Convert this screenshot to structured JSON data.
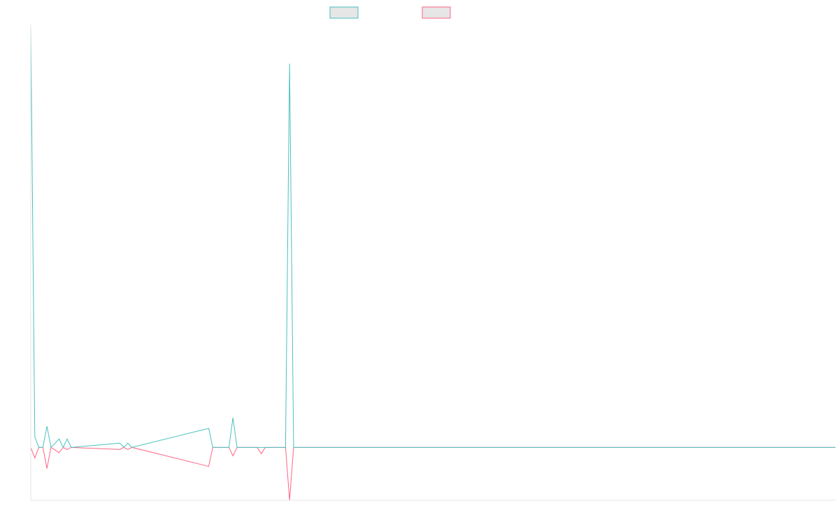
{
  "chart_data": {
    "type": "line",
    "title": "",
    "xlabel": "",
    "ylabel": "",
    "legend": {
      "placement": "top-center"
    },
    "grid": false,
    "x_count": 200,
    "ylim": [
      -50,
      400
    ],
    "series": [
      {
        "color": "#4bc0c0",
        "points": [
          [
            0,
            400
          ],
          [
            1,
            10
          ],
          [
            2,
            0
          ],
          [
            3,
            0
          ],
          [
            4,
            20
          ],
          [
            5,
            0
          ],
          [
            7,
            8
          ],
          [
            8,
            0
          ],
          [
            9,
            8
          ],
          [
            10,
            0
          ],
          [
            22,
            4
          ],
          [
            23,
            0
          ],
          [
            24,
            4
          ],
          [
            25,
            0
          ],
          [
            44,
            18
          ],
          [
            45,
            0
          ],
          [
            49,
            0
          ],
          [
            50,
            28
          ],
          [
            51,
            0
          ],
          [
            63,
            0
          ],
          [
            64,
            363
          ],
          [
            65,
            0
          ],
          [
            199,
            0
          ]
        ]
      },
      {
        "color": "#ff6384",
        "points": [
          [
            0,
            0
          ],
          [
            1,
            -10
          ],
          [
            2,
            0
          ],
          [
            3,
            0
          ],
          [
            4,
            -20
          ],
          [
            5,
            0
          ],
          [
            7,
            -5
          ],
          [
            8,
            0
          ],
          [
            9,
            -2
          ],
          [
            10,
            0
          ],
          [
            22,
            -2
          ],
          [
            23,
            0
          ],
          [
            24,
            -2
          ],
          [
            25,
            0
          ],
          [
            44,
            -18
          ],
          [
            45,
            0
          ],
          [
            49,
            0
          ],
          [
            50,
            -8
          ],
          [
            51,
            0
          ],
          [
            56,
            0
          ],
          [
            57,
            -6
          ],
          [
            58,
            0
          ],
          [
            63,
            0
          ],
          [
            64,
            -50
          ],
          [
            65,
            0
          ],
          [
            199,
            0
          ]
        ]
      }
    ]
  }
}
